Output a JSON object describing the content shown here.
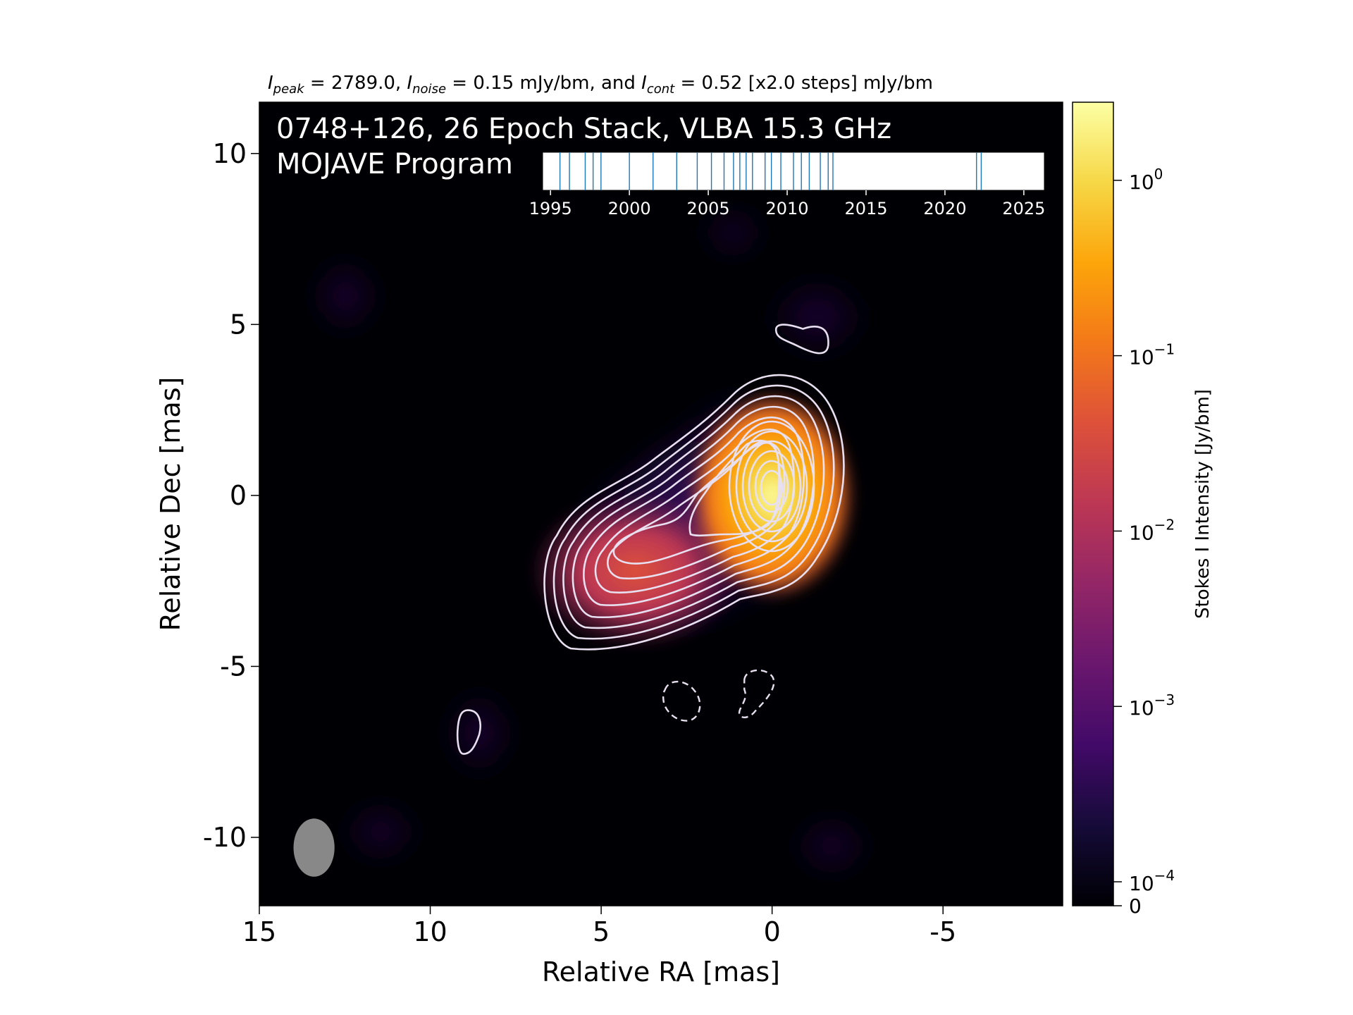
{
  "chart_data": {
    "type": "heatmap",
    "subtitle": {
      "peak_symbol": "I",
      "peak_sub": "peak",
      "peak_value": " = 2789.0, ",
      "noise_symbol": "I",
      "noise_sub": "noise",
      "noise_value": " = 0.15 mJy/bm, and ",
      "cont_symbol": "I",
      "cont_sub": "cont",
      "cont_value": " = 0.52 [x2.0 steps] mJy/bm"
    },
    "title_line1": "0748+126, 26 Epoch Stack, VLBA 15.3 GHz",
    "title_line2": "MOJAVE Program",
    "xlabel": "Relative RA [mas]",
    "ylabel": "Relative Dec [mas]",
    "xlim": [
      15,
      -8.5
    ],
    "ylim": [
      -12,
      11.5
    ],
    "xticks": [
      15,
      10,
      5,
      0,
      -5
    ],
    "xtick_labels": [
      "15",
      "10",
      "5",
      "0",
      "-5"
    ],
    "yticks": [
      10,
      5,
      0,
      -5,
      -10
    ],
    "ytick_labels": [
      "10",
      "5",
      "0",
      "-5",
      "-10"
    ],
    "colorbar": {
      "label": "Stokes I Intensity [Jy/bm]",
      "scale": "log",
      "colormap": "inferno",
      "ticks": [
        1,
        0.1,
        0.01,
        0.001,
        0.0001
      ],
      "tick_base": "10",
      "tick_exponents": [
        "0",
        "−1",
        "−2",
        "−3",
        "−4"
      ],
      "zero_label": "0",
      "range": [
        0,
        2.789
      ]
    },
    "components": [
      {
        "name": "core",
        "ra": 0.0,
        "dec": 0.0,
        "peak_jybm": 2.789
      },
      {
        "name": "jet",
        "ra": 4.0,
        "dec": -2.2,
        "peak_jybm": 0.02
      }
    ],
    "negative_contours": [
      {
        "ra": 2.6,
        "dec": -6.0
      },
      {
        "ra": 0.4,
        "dec": -5.8
      }
    ],
    "isolated_contours": [
      {
        "ra": -0.9,
        "dec": 4.5
      },
      {
        "ra": 8.9,
        "dec": -6.9
      }
    ],
    "beam": {
      "ra": 13.4,
      "dec": -10.3,
      "major_mas": 1.7,
      "minor_mas": 1.2,
      "pa_deg": 0
    },
    "epoch_timeline": {
      "xlim": [
        1994.5,
        2026.3
      ],
      "ticks": [
        1995,
        2000,
        2005,
        2010,
        2015,
        2020,
        2025
      ],
      "tick_labels": [
        "1995",
        "2000",
        "2005",
        "2010",
        "2015",
        "2020",
        "2025"
      ],
      "epochs": [
        1995.6,
        1996.2,
        1997.2,
        1997.7,
        1998.2,
        2000.0,
        2001.5,
        2003.0,
        2004.3,
        2005.2,
        2006.0,
        2006.6,
        2007.0,
        2007.4,
        2007.8,
        2008.6,
        2009.0,
        2009.6,
        2010.4,
        2010.9,
        2011.4,
        2012.1,
        2012.6,
        2012.9,
        2022.0,
        2022.3
      ]
    },
    "colors": {
      "background": "#000000",
      "contour": "#e8e0f0",
      "beam": "#888888",
      "epoch_line": "#1f77b4"
    }
  }
}
